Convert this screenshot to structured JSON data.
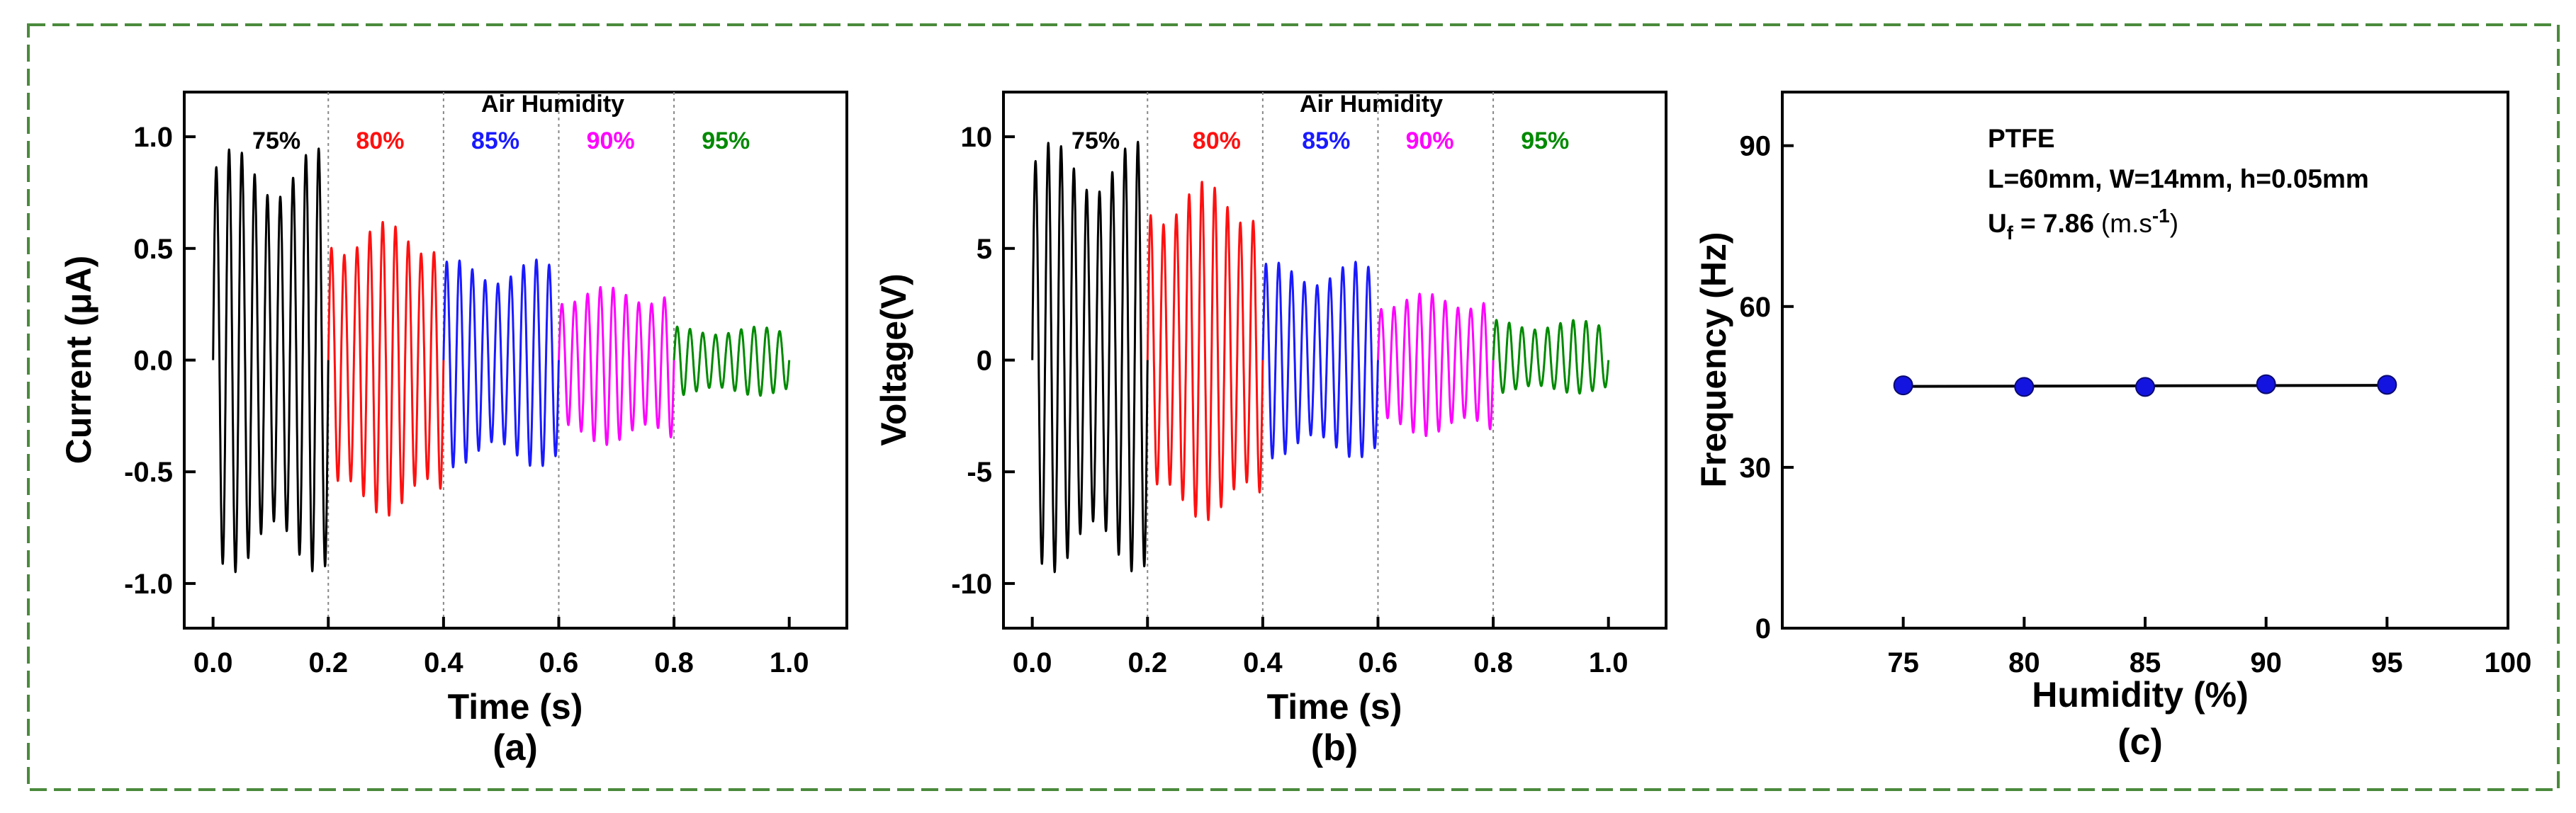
{
  "colors": {
    "frame_border": "#4a8a3c",
    "series": [
      "#000000",
      "#ff1010",
      "#1a1aff",
      "#ff00ff",
      "#008a00"
    ],
    "marker": "#1414e0"
  },
  "chart_data": [
    {
      "type": "line",
      "panel_label": "(a)",
      "title": "Air Humidity",
      "xlabel": "Time (s)",
      "ylabel": "Current (μA)",
      "xlim": [
        -0.05,
        1.1
      ],
      "ylim": [
        -1.2,
        1.2
      ],
      "xticks": [
        0.0,
        0.2,
        0.4,
        0.6,
        0.8,
        1.0
      ],
      "xtick_labels": [
        "0.0",
        "0.2",
        "0.4",
        "0.6",
        "0.8",
        "1.0"
      ],
      "yticks": [
        -1.0,
        -0.5,
        0.0,
        0.5,
        1.0
      ],
      "ytick_labels": [
        "-1.0",
        "-0.5",
        "0.0",
        "0.5",
        "1.0"
      ],
      "segment_dividers": [
        0.2,
        0.4,
        0.6,
        0.8
      ],
      "series": [
        {
          "name": "75%",
          "x_range": [
            0.0,
            0.2
          ],
          "frequency_hz": 45,
          "amp_max": 0.95,
          "amp_min": -0.95,
          "label_x": 0.11
        },
        {
          "name": "80%",
          "x_range": [
            0.2,
            0.4
          ],
          "frequency_hz": 45,
          "amp_max": 0.62,
          "amp_min": -0.7,
          "label_x": 0.29
        },
        {
          "name": "85%",
          "x_range": [
            0.4,
            0.6
          ],
          "frequency_hz": 45,
          "amp_max": 0.45,
          "amp_min": -0.48,
          "label_x": 0.49
        },
        {
          "name": "90%",
          "x_range": [
            0.6,
            0.8
          ],
          "frequency_hz": 45,
          "amp_max": 0.33,
          "amp_min": -0.38,
          "label_x": 0.69
        },
        {
          "name": "95%",
          "x_range": [
            0.8,
            1.0
          ],
          "frequency_hz": 45,
          "amp_max": 0.15,
          "amp_min": -0.16,
          "label_x": 0.89
        }
      ]
    },
    {
      "type": "line",
      "panel_label": "(b)",
      "title": "Air Humidity",
      "xlabel": "Time (s)",
      "ylabel": "Voltage(V)",
      "xlim": [
        -0.05,
        1.1
      ],
      "ylim": [
        -12,
        12
      ],
      "xticks": [
        0.0,
        0.2,
        0.4,
        0.6,
        0.8,
        1.0
      ],
      "xtick_labels": [
        "0.0",
        "0.2",
        "0.4",
        "0.6",
        "0.8",
        "1.0"
      ],
      "yticks": [
        -10,
        -5,
        0,
        5,
        10
      ],
      "ytick_labels": [
        "-10",
        "-5",
        "0",
        "5",
        "10"
      ],
      "segment_dividers": [
        0.2,
        0.4,
        0.6,
        0.8
      ],
      "series": [
        {
          "name": "75%",
          "x_range": [
            0.0,
            0.2
          ],
          "frequency_hz": 45,
          "amp_max": 9.8,
          "amp_min": -9.5,
          "label_x": 0.11
        },
        {
          "name": "80%",
          "x_range": [
            0.2,
            0.4
          ],
          "frequency_hz": 45,
          "amp_max": 8.0,
          "amp_min": -7.2,
          "label_x": 0.32
        },
        {
          "name": "85%",
          "x_range": [
            0.4,
            0.6
          ],
          "frequency_hz": 45,
          "amp_max": 4.4,
          "amp_min": -4.4,
          "label_x": 0.51
        },
        {
          "name": "90%",
          "x_range": [
            0.6,
            0.8
          ],
          "frequency_hz": 45,
          "amp_max": 3.0,
          "amp_min": -3.4,
          "label_x": 0.69
        },
        {
          "name": "95%",
          "x_range": [
            0.8,
            1.0
          ],
          "frequency_hz": 45,
          "amp_max": 1.8,
          "amp_min": -1.5,
          "label_x": 0.89
        }
      ]
    },
    {
      "type": "scatter",
      "panel_label": "(c)",
      "xlabel": "Humidity (%)",
      "ylabel": "Frequency (Hz)",
      "xlim": [
        70,
        100
      ],
      "ylim": [
        0,
        100
      ],
      "xticks": [
        75,
        80,
        85,
        90,
        95,
        100
      ],
      "xtick_labels": [
        "75",
        "80",
        "85",
        "90",
        "95",
        "100"
      ],
      "yticks": [
        0,
        30,
        60,
        90
      ],
      "ytick_labels": [
        "0",
        "30",
        "60",
        "90"
      ],
      "x": [
        75,
        80,
        85,
        90,
        95
      ],
      "y": [
        45.3,
        45.0,
        45.0,
        45.5,
        45.4
      ],
      "fit_line": {
        "x": [
          75,
          95
        ],
        "y": [
          45.1,
          45.3
        ]
      },
      "annotations": {
        "material": "PTFE",
        "dimensions": "L=60mm, W=14mm, h=0.05mm",
        "flow_velocity": "U",
        "flow_velocity_subscript": "f",
        "flow_velocity_value": " = 7.86",
        "flow_velocity_unit_open": "(m.s",
        "flow_velocity_unit_exponent": "-1",
        "flow_velocity_unit_close": ")"
      }
    }
  ]
}
